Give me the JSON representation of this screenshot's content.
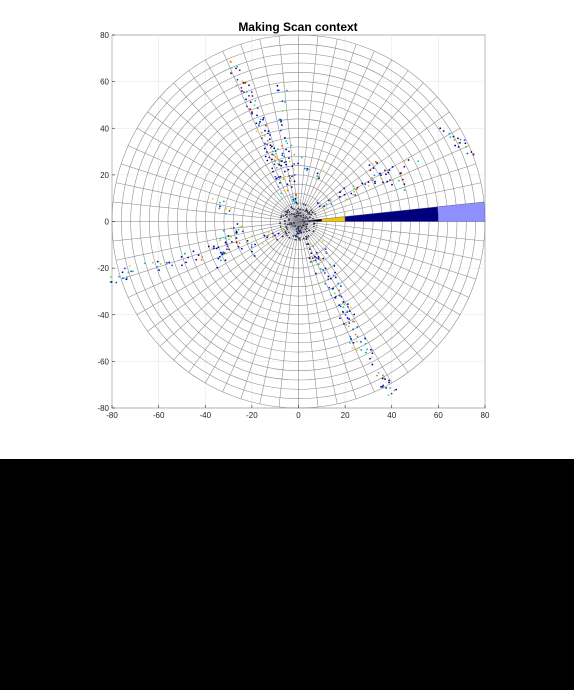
{
  "chart_data": {
    "type": "scatter",
    "title": "Making Scan context",
    "xlabel": "",
    "ylabel": "",
    "xlim": [
      -80,
      80
    ],
    "ylim": [
      -80,
      80
    ],
    "x_ticks": [
      -80,
      -60,
      -40,
      -20,
      0,
      20,
      40,
      60,
      80
    ],
    "y_ticks": [
      -80,
      -60,
      -40,
      -20,
      0,
      20,
      40,
      60,
      80
    ],
    "x_tick_labels": [
      "-80",
      "-60",
      "-40",
      "-20",
      "0",
      "20",
      "40",
      "60",
      "80"
    ],
    "y_tick_labels": [
      "-80",
      "-60",
      "-40",
      "-20",
      "0",
      "20",
      "40",
      "60",
      "80"
    ],
    "grid": true,
    "polar_grid": {
      "max_radius": 80,
      "ring_count": 20,
      "sector_count": 60
    },
    "highlighted_sector": {
      "angle_range_deg": [
        0,
        6
      ],
      "segments": [
        {
          "r_range": [
            0,
            10
          ],
          "color": "#000000"
        },
        {
          "r_range": [
            10,
            20
          ],
          "color": "#f2c500"
        },
        {
          "r_range": [
            20,
            60
          ],
          "color": "#00007f"
        },
        {
          "r_range": [
            60,
            80
          ],
          "color": "#8f8fff"
        }
      ]
    },
    "point_colormap": [
      "#0000a0",
      "#1f3fd0",
      "#00a0e0",
      "#00c8a0",
      "#80d030",
      "#f0c020",
      "#f07010",
      "#b00000"
    ],
    "point_clusters": [
      {
        "from": [
          -30,
          72
        ],
        "to": [
          0,
          5
        ],
        "n": 70
      },
      {
        "from": [
          -8,
          60
        ],
        "to": [
          -2,
          8
        ],
        "n": 40
      },
      {
        "from": [
          -20,
          52
        ],
        "to": [
          -5,
          10
        ],
        "n": 30
      },
      {
        "from": [
          0,
          -3
        ],
        "to": [
          40,
          -75
        ],
        "n": 90
      },
      {
        "from": [
          10,
          -10
        ],
        "to": [
          25,
          -55
        ],
        "n": 40
      },
      {
        "from": [
          -85,
          -25
        ],
        "to": [
          -5,
          -5
        ],
        "n": 70
      },
      {
        "from": [
          -35,
          -20
        ],
        "to": [
          -30,
          -5
        ],
        "n": 20
      },
      {
        "from": [
          5,
          5
        ],
        "to": [
          50,
          25
        ],
        "n": 40
      },
      {
        "from": [
          30,
          25
        ],
        "to": [
          45,
          15
        ],
        "n": 20
      },
      {
        "from": [
          60,
          40
        ],
        "to": [
          75,
          30
        ],
        "n": 20
      },
      {
        "from": [
          -35,
          10
        ],
        "to": [
          -20,
          -15
        ],
        "n": 25
      },
      {
        "from": [
          -10,
          30
        ],
        "to": [
          10,
          20
        ],
        "n": 25
      }
    ]
  }
}
